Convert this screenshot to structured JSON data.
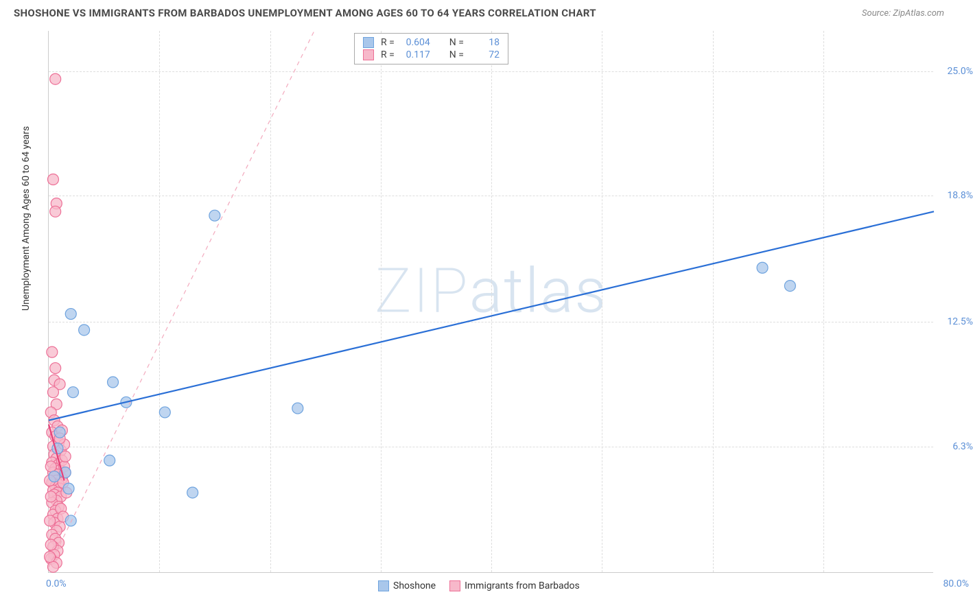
{
  "title": "SHOSHONE VS IMMIGRANTS FROM BARBADOS UNEMPLOYMENT AMONG AGES 60 TO 64 YEARS CORRELATION CHART",
  "source": "Source: ZipAtlas.com",
  "watermark": "ZIPatlas",
  "ylabel": "Unemployment Among Ages 60 to 64 years",
  "chart": {
    "type": "scatter",
    "xlim": [
      0,
      80
    ],
    "ylim": [
      0,
      27
    ],
    "xtick_min_label": "0.0%",
    "xtick_max_label": "80.0%",
    "ytick_labels": [
      "6.3%",
      "12.5%",
      "18.8%",
      "25.0%"
    ],
    "ytick_values": [
      6.3,
      12.5,
      18.8,
      25.0
    ],
    "xgrid_values": [
      10,
      20,
      30,
      40,
      50,
      60,
      70
    ],
    "background_color": "#ffffff",
    "grid_color": "#dddddd",
    "axis_color": "#cccccc",
    "tick_label_color": "#5b8fd6",
    "series": [
      {
        "name": "Shoshone",
        "color_fill": "#a9c7eb",
        "color_stroke": "#6ea3de",
        "marker_radius": 8,
        "marker_opacity": 0.75,
        "R": "0.604",
        "N": "18",
        "trend": {
          "x1": 0,
          "y1": 7.6,
          "x2": 80,
          "y2": 18.0,
          "dash": "none",
          "width": 2.2,
          "color": "#2a6fd6"
        },
        "points": [
          {
            "x": 15.0,
            "y": 17.8
          },
          {
            "x": 64.5,
            "y": 15.2
          },
          {
            "x": 67.0,
            "y": 14.3
          },
          {
            "x": 2.0,
            "y": 12.9
          },
          {
            "x": 3.2,
            "y": 12.1
          },
          {
            "x": 5.8,
            "y": 9.5
          },
          {
            "x": 7.0,
            "y": 8.5
          },
          {
            "x": 10.5,
            "y": 8.0
          },
          {
            "x": 22.5,
            "y": 8.2
          },
          {
            "x": 5.5,
            "y": 5.6
          },
          {
            "x": 1.5,
            "y": 5.0
          },
          {
            "x": 1.8,
            "y": 4.2
          },
          {
            "x": 13.0,
            "y": 4.0
          },
          {
            "x": 2.0,
            "y": 2.6
          },
          {
            "x": 1.0,
            "y": 7.0
          },
          {
            "x": 0.8,
            "y": 6.2
          },
          {
            "x": 0.5,
            "y": 4.8
          },
          {
            "x": 2.2,
            "y": 9.0
          }
        ]
      },
      {
        "name": "Immigrants from Barbados",
        "color_fill": "#f7b8ca",
        "color_stroke": "#ed6f96",
        "marker_radius": 8,
        "marker_opacity": 0.75,
        "R": "0.117",
        "N": "72",
        "trend_solid": {
          "x1": 0,
          "y1": 7.4,
          "x2": 1.4,
          "y2": 4.6,
          "dash": "none",
          "width": 2.2,
          "color": "#e64078"
        },
        "trend_dash": {
          "x1": 0,
          "y1": 0.3,
          "x2": 24,
          "y2": 27,
          "dash": "6,6",
          "width": 1.2,
          "color": "#f3a9bd"
        },
        "points": [
          {
            "x": 0.6,
            "y": 24.6
          },
          {
            "x": 0.4,
            "y": 19.6
          },
          {
            "x": 0.7,
            "y": 18.4
          },
          {
            "x": 0.6,
            "y": 18.0
          },
          {
            "x": 0.3,
            "y": 11.0
          },
          {
            "x": 0.6,
            "y": 10.2
          },
          {
            "x": 0.5,
            "y": 9.6
          },
          {
            "x": 1.0,
            "y": 9.4
          },
          {
            "x": 0.4,
            "y": 9.0
          },
          {
            "x": 0.7,
            "y": 8.4
          },
          {
            "x": 0.2,
            "y": 8.0
          },
          {
            "x": 0.5,
            "y": 7.6
          },
          {
            "x": 0.8,
            "y": 7.3
          },
          {
            "x": 0.3,
            "y": 7.0
          },
          {
            "x": 0.6,
            "y": 6.8
          },
          {
            "x": 0.9,
            "y": 6.5
          },
          {
            "x": 0.4,
            "y": 6.3
          },
          {
            "x": 1.1,
            "y": 6.1
          },
          {
            "x": 0.5,
            "y": 5.9
          },
          {
            "x": 0.7,
            "y": 5.7
          },
          {
            "x": 0.3,
            "y": 5.5
          },
          {
            "x": 0.9,
            "y": 5.4
          },
          {
            "x": 0.6,
            "y": 5.2
          },
          {
            "x": 1.0,
            "y": 5.1
          },
          {
            "x": 0.4,
            "y": 5.0
          },
          {
            "x": 0.8,
            "y": 4.9
          },
          {
            "x": 0.5,
            "y": 4.8
          },
          {
            "x": 1.2,
            "y": 4.7
          },
          {
            "x": 0.7,
            "y": 4.6
          },
          {
            "x": 0.3,
            "y": 4.5
          },
          {
            "x": 0.9,
            "y": 4.4
          },
          {
            "x": 0.6,
            "y": 4.3
          },
          {
            "x": 1.0,
            "y": 4.2
          },
          {
            "x": 0.4,
            "y": 4.1
          },
          {
            "x": 0.8,
            "y": 4.0
          },
          {
            "x": 0.5,
            "y": 3.9
          },
          {
            "x": 1.1,
            "y": 3.8
          },
          {
            "x": 0.7,
            "y": 3.6
          },
          {
            "x": 0.3,
            "y": 3.5
          },
          {
            "x": 0.9,
            "y": 3.3
          },
          {
            "x": 0.6,
            "y": 3.1
          },
          {
            "x": 0.4,
            "y": 2.9
          },
          {
            "x": 0.8,
            "y": 2.7
          },
          {
            "x": 0.5,
            "y": 2.5
          },
          {
            "x": 1.0,
            "y": 2.3
          },
          {
            "x": 0.7,
            "y": 2.1
          },
          {
            "x": 0.3,
            "y": 1.9
          },
          {
            "x": 0.6,
            "y": 1.7
          },
          {
            "x": 0.9,
            "y": 1.5
          },
          {
            "x": 0.4,
            "y": 1.3
          },
          {
            "x": 0.8,
            "y": 1.1
          },
          {
            "x": 0.5,
            "y": 0.9
          },
          {
            "x": 0.2,
            "y": 0.7
          },
          {
            "x": 0.7,
            "y": 0.5
          },
          {
            "x": 0.4,
            "y": 0.3
          },
          {
            "x": 1.2,
            "y": 5.6
          },
          {
            "x": 1.4,
            "y": 5.3
          },
          {
            "x": 1.3,
            "y": 4.5
          },
          {
            "x": 1.5,
            "y": 5.0
          },
          {
            "x": 1.6,
            "y": 4.0
          },
          {
            "x": 1.1,
            "y": 3.2
          },
          {
            "x": 1.3,
            "y": 2.8
          },
          {
            "x": 1.4,
            "y": 6.4
          },
          {
            "x": 1.2,
            "y": 7.1
          },
          {
            "x": 1.5,
            "y": 5.8
          },
          {
            "x": 0.2,
            "y": 5.3
          },
          {
            "x": 0.1,
            "y": 4.6
          },
          {
            "x": 0.2,
            "y": 3.8
          },
          {
            "x": 0.1,
            "y": 2.6
          },
          {
            "x": 0.2,
            "y": 1.4
          },
          {
            "x": 0.1,
            "y": 0.8
          },
          {
            "x": 1.0,
            "y": 6.7
          }
        ]
      }
    ]
  },
  "legend_top_label_R": "R =",
  "legend_top_label_N": "N ="
}
